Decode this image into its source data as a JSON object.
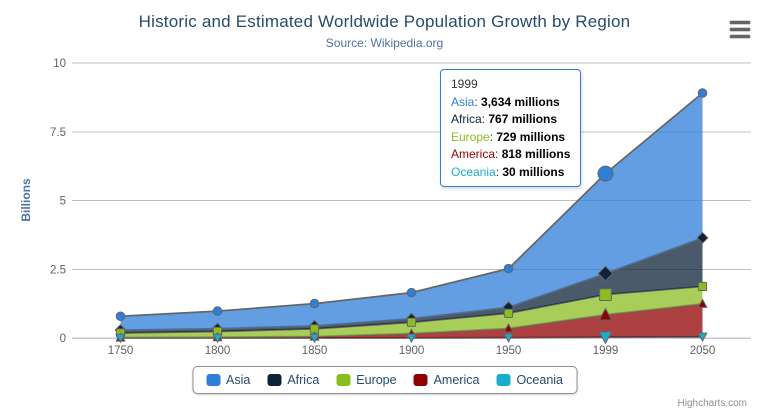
{
  "chart_data": {
    "type": "area",
    "stacking": "normal",
    "title": "Historic and Estimated Worldwide Population Growth by Region",
    "subtitle": "Source: Wikipedia.org",
    "xlabel": "",
    "ylabel": "Billions",
    "unit": "millions",
    "categories": [
      "1750",
      "1800",
      "1850",
      "1900",
      "1950",
      "1999",
      "2050"
    ],
    "yticks": [
      0,
      2.5,
      5,
      7.5,
      10
    ],
    "ytick_labels": [
      "0",
      "2.5",
      "5",
      "7.5",
      "10"
    ],
    "ylim": [
      0,
      10
    ],
    "grid": true,
    "legend_position": "bottom",
    "line_color": "#666666",
    "fill_opacity": 0.75,
    "series": [
      {
        "name": "Asia",
        "color": "#2f7ed8",
        "marker": "circle",
        "values": [
          502,
          635,
          809,
          947,
          1402,
          3634,
          5268
        ]
      },
      {
        "name": "Africa",
        "color": "#0d233a",
        "marker": "diamond",
        "values": [
          106,
          107,
          111,
          133,
          221,
          767,
          1766
        ]
      },
      {
        "name": "Europe",
        "color": "#8bbc21",
        "marker": "square",
        "values": [
          163,
          203,
          276,
          408,
          547,
          729,
          628
        ]
      },
      {
        "name": "America",
        "color": "#910000",
        "marker": "triangle",
        "values": [
          18,
          31,
          54,
          156,
          339,
          818,
          1201
        ]
      },
      {
        "name": "Oceania",
        "color": "#1aadce",
        "marker": "triangle-down",
        "values": [
          2,
          2,
          2,
          6,
          13,
          30,
          46
        ]
      }
    ],
    "stack_bottom_to_top": [
      "Oceania",
      "America",
      "Europe",
      "Africa",
      "Asia"
    ]
  },
  "hover": {
    "category": "1999",
    "series": "Asia"
  },
  "tooltip": {
    "header": "1999",
    "border_color": "#2f7ed8",
    "rows": [
      {
        "name": "Asia",
        "color": "#2f7ed8",
        "value": "3,634",
        "suffix": "millions"
      },
      {
        "name": "Africa",
        "color": "#0d233a",
        "value": "767",
        "suffix": "millions"
      },
      {
        "name": "Europe",
        "color": "#8bbc21",
        "value": "729",
        "suffix": "millions"
      },
      {
        "name": "America",
        "color": "#910000",
        "value": "818",
        "suffix": "millions"
      },
      {
        "name": "Oceania",
        "color": "#1aadce",
        "value": "30",
        "suffix": "millions"
      }
    ]
  },
  "legend": {
    "items": [
      {
        "label": "Asia",
        "color": "#2f7ed8"
      },
      {
        "label": "Africa",
        "color": "#0d233a"
      },
      {
        "label": "Europe",
        "color": "#8bbc21"
      },
      {
        "label": "America",
        "color": "#910000"
      },
      {
        "label": "Oceania",
        "color": "#1aadce"
      }
    ]
  },
  "credits": {
    "label": "Highcharts.com"
  },
  "export_menu": {
    "icon": "hamburger-icon"
  },
  "theme": {
    "title_color": "#274b6d",
    "subtitle_color": "#4d759e",
    "axis_label_color": "#606060",
    "axis_title_color": "#4d759e",
    "grid_color": "#c0c0c0",
    "axis_line_color": "#c0d0e0"
  }
}
